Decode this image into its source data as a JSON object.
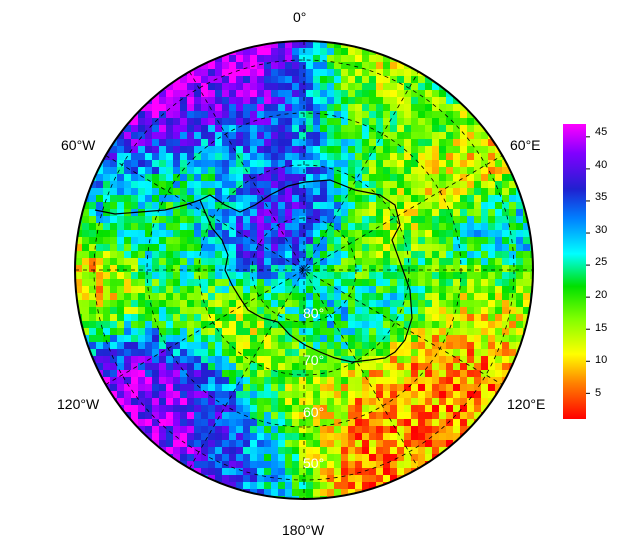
{
  "map": {
    "projection": "south polar stereographic",
    "longitude_labels": {
      "top": "0°",
      "upper_left": "60°W",
      "upper_right": "60°E",
      "lower_left": "120°W",
      "lower_right": "120°E",
      "bottom": "180°W"
    },
    "latitude_labels": [
      "80°",
      "70°",
      "60°",
      "50°"
    ],
    "graticule": "dashed",
    "coastline": "Antarctica",
    "field_colormap": "rainbow (red low → magenta high)"
  },
  "colorbar": {
    "ticks": [
      "5",
      "10",
      "15",
      "20",
      "25",
      "30",
      "35",
      "40",
      "45"
    ],
    "range": [
      1,
      47
    ],
    "colors": [
      "#ff0000",
      "#ff8000",
      "#ffff00",
      "#80ff00",
      "#00e000",
      "#00ffff",
      "#0080ff",
      "#2020d0",
      "#8000ff",
      "#ff00ff"
    ]
  }
}
